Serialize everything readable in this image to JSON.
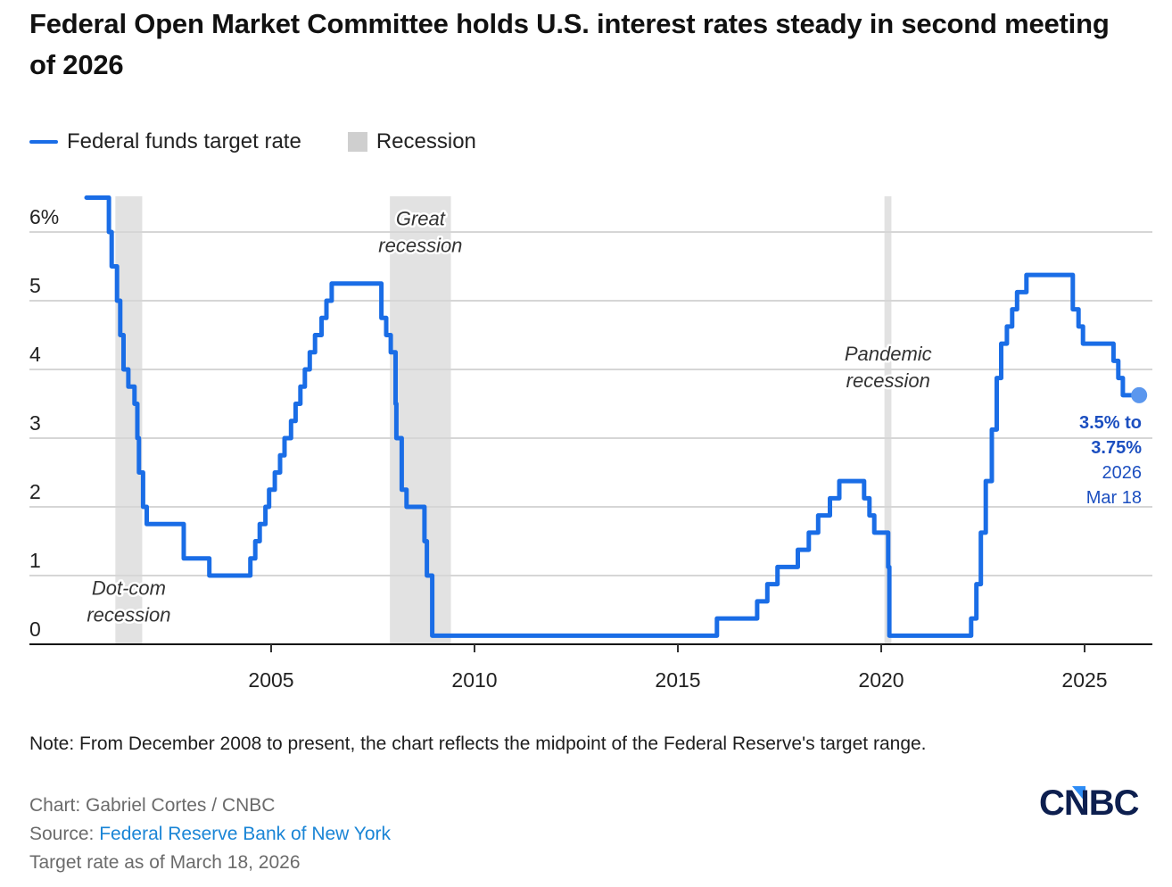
{
  "title": "Federal Open Market Committee holds U.S. interest rates steady in second meeting of 2026",
  "legend": {
    "series_label": "Federal funds target rate",
    "recession_label": "Recession"
  },
  "colors": {
    "line": "#1a6de6",
    "recession": "#e2e2e2",
    "gridline": "#d6d6d6",
    "axis": "#111111",
    "end_marker": "#5b97ee",
    "callout": "#1c4fc0",
    "source_link": "#1a85d6"
  },
  "footnote": "Note: From December 2008 to present, the chart reflects the midpoint of the Federal Reserve's target range.",
  "credits": {
    "chart_by": "Chart: Gabriel Cortes / CNBC",
    "source_prefix": "Source: ",
    "source_link": "Federal Reserve Bank of New York",
    "as_of": "Target rate as of March 18, 2026"
  },
  "logo": {
    "text": "CNBC",
    "icon": "cnbc-logo"
  },
  "chart_data": {
    "type": "line",
    "step": true,
    "title": "Federal Open Market Committee holds U.S. interest rates steady in second meeting of 2026",
    "xlabel": "",
    "ylabel": "",
    "xlim": [
      2000.0,
      2026.5
    ],
    "ylim": [
      0,
      6.5
    ],
    "grid": true,
    "legend_position": "top-left",
    "y_ticks": [
      0,
      1,
      2,
      3,
      4,
      5,
      6
    ],
    "y_tick_labels": [
      "0",
      "1",
      "2",
      "3",
      "4",
      "5",
      "6%"
    ],
    "x_ticks": [
      2005,
      2010,
      2015,
      2020,
      2025
    ],
    "x_tick_labels": [
      "2005",
      "2010",
      "2015",
      "2020",
      "2025"
    ],
    "recessions": [
      {
        "name": "Dot-com recession",
        "label_lines": [
          "Dot-com",
          "recession"
        ],
        "start": 2001.17,
        "end": 2001.83
      },
      {
        "name": "Great recession",
        "label_lines": [
          "Great",
          "recession"
        ],
        "start": 2007.92,
        "end": 2009.42
      },
      {
        "name": "Pandemic recession",
        "label_lines": [
          "Pandemic",
          "recession"
        ],
        "start": 2020.08,
        "end": 2020.25
      }
    ],
    "series": [
      {
        "name": "Federal funds target rate",
        "unit": "%",
        "points": [
          {
            "date": "2000-05-16",
            "x": 2000.46,
            "y": 6.5
          },
          {
            "date": "2001-01-03",
            "x": 2001.01,
            "y": 6.0
          },
          {
            "date": "2001-01-31",
            "x": 2001.08,
            "y": 5.5
          },
          {
            "date": "2001-03-20",
            "x": 2001.21,
            "y": 5.0
          },
          {
            "date": "2001-04-18",
            "x": 2001.29,
            "y": 4.5
          },
          {
            "date": "2001-05-15",
            "x": 2001.37,
            "y": 4.0
          },
          {
            "date": "2001-06-27",
            "x": 2001.49,
            "y": 3.75
          },
          {
            "date": "2001-08-21",
            "x": 2001.64,
            "y": 3.5
          },
          {
            "date": "2001-09-17",
            "x": 2001.71,
            "y": 3.0
          },
          {
            "date": "2001-10-02",
            "x": 2001.75,
            "y": 2.5
          },
          {
            "date": "2001-11-06",
            "x": 2001.85,
            "y": 2.0
          },
          {
            "date": "2001-12-11",
            "x": 2001.94,
            "y": 1.75
          },
          {
            "date": "2002-11-06",
            "x": 2002.85,
            "y": 1.25
          },
          {
            "date": "2003-06-25",
            "x": 2003.48,
            "y": 1.0
          },
          {
            "date": "2004-06-30",
            "x": 2004.49,
            "y": 1.25
          },
          {
            "date": "2004-08-10",
            "x": 2004.61,
            "y": 1.5
          },
          {
            "date": "2004-09-21",
            "x": 2004.72,
            "y": 1.75
          },
          {
            "date": "2004-11-10",
            "x": 2004.86,
            "y": 2.0
          },
          {
            "date": "2004-12-14",
            "x": 2004.95,
            "y": 2.25
          },
          {
            "date": "2005-02-02",
            "x": 2005.09,
            "y": 2.5
          },
          {
            "date": "2005-03-22",
            "x": 2005.22,
            "y": 2.75
          },
          {
            "date": "2005-05-03",
            "x": 2005.33,
            "y": 3.0
          },
          {
            "date": "2005-06-30",
            "x": 2005.49,
            "y": 3.25
          },
          {
            "date": "2005-08-09",
            "x": 2005.6,
            "y": 3.5
          },
          {
            "date": "2005-09-20",
            "x": 2005.72,
            "y": 3.75
          },
          {
            "date": "2005-11-01",
            "x": 2005.83,
            "y": 4.0
          },
          {
            "date": "2005-12-13",
            "x": 2005.95,
            "y": 4.25
          },
          {
            "date": "2006-01-31",
            "x": 2006.08,
            "y": 4.5
          },
          {
            "date": "2006-03-28",
            "x": 2006.24,
            "y": 4.75
          },
          {
            "date": "2006-05-10",
            "x": 2006.36,
            "y": 5.0
          },
          {
            "date": "2006-06-29",
            "x": 2006.49,
            "y": 5.25
          },
          {
            "date": "2007-09-18",
            "x": 2007.71,
            "y": 4.75
          },
          {
            "date": "2007-10-31",
            "x": 2007.83,
            "y": 4.5
          },
          {
            "date": "2007-12-11",
            "x": 2007.94,
            "y": 4.25
          },
          {
            "date": "2008-01-22",
            "x": 2008.06,
            "y": 3.5
          },
          {
            "date": "2008-01-30",
            "x": 2008.08,
            "y": 3.0
          },
          {
            "date": "2008-03-18",
            "x": 2008.21,
            "y": 2.25
          },
          {
            "date": "2008-04-30",
            "x": 2008.33,
            "y": 2.0
          },
          {
            "date": "2008-10-08",
            "x": 2008.77,
            "y": 1.5
          },
          {
            "date": "2008-10-29",
            "x": 2008.83,
            "y": 1.0
          },
          {
            "date": "2008-12-16",
            "x": 2008.96,
            "y": 0.125
          },
          {
            "date": "2015-12-16",
            "x": 2015.96,
            "y": 0.375
          },
          {
            "date": "2016-12-14",
            "x": 2016.95,
            "y": 0.625
          },
          {
            "date": "2017-03-15",
            "x": 2017.2,
            "y": 0.875
          },
          {
            "date": "2017-06-14",
            "x": 2017.45,
            "y": 1.125
          },
          {
            "date": "2017-12-13",
            "x": 2017.95,
            "y": 1.375
          },
          {
            "date": "2018-03-21",
            "x": 2018.22,
            "y": 1.625
          },
          {
            "date": "2018-06-13",
            "x": 2018.45,
            "y": 1.875
          },
          {
            "date": "2018-09-26",
            "x": 2018.74,
            "y": 2.125
          },
          {
            "date": "2018-12-19",
            "x": 2018.97,
            "y": 2.375
          },
          {
            "date": "2019-07-31",
            "x": 2019.58,
            "y": 2.125
          },
          {
            "date": "2019-09-18",
            "x": 2019.71,
            "y": 1.875
          },
          {
            "date": "2019-10-30",
            "x": 2019.83,
            "y": 1.625
          },
          {
            "date": "2020-03-03",
            "x": 2020.17,
            "y": 1.125
          },
          {
            "date": "2020-03-15",
            "x": 2020.2,
            "y": 0.125
          },
          {
            "date": "2022-03-16",
            "x": 2022.21,
            "y": 0.375
          },
          {
            "date": "2022-05-04",
            "x": 2022.34,
            "y": 0.875
          },
          {
            "date": "2022-06-15",
            "x": 2022.45,
            "y": 1.625
          },
          {
            "date": "2022-07-27",
            "x": 2022.57,
            "y": 2.375
          },
          {
            "date": "2022-09-21",
            "x": 2022.72,
            "y": 3.125
          },
          {
            "date": "2022-11-02",
            "x": 2022.84,
            "y": 3.875
          },
          {
            "date": "2022-12-14",
            "x": 2022.95,
            "y": 4.375
          },
          {
            "date": "2023-02-01",
            "x": 2023.09,
            "y": 4.625
          },
          {
            "date": "2023-03-22",
            "x": 2023.22,
            "y": 4.875
          },
          {
            "date": "2023-05-03",
            "x": 2023.34,
            "y": 5.125
          },
          {
            "date": "2023-07-26",
            "x": 2023.57,
            "y": 5.375
          },
          {
            "date": "2024-09-18",
            "x": 2024.71,
            "y": 4.875
          },
          {
            "date": "2024-11-07",
            "x": 2024.85,
            "y": 4.625
          },
          {
            "date": "2024-12-18",
            "x": 2024.96,
            "y": 4.375
          },
          {
            "date": "2025-09-17",
            "x": 2025.71,
            "y": 4.125
          },
          {
            "date": "2025-10-29",
            "x": 2025.83,
            "y": 3.875
          },
          {
            "date": "2025-12-10",
            "x": 2025.94,
            "y": 3.625
          },
          {
            "date": "2026-03-18",
            "x": 2026.21,
            "y": 3.625
          }
        ]
      }
    ],
    "annotations": [
      {
        "name": "end-value",
        "x": 2026.21,
        "y": 3.625,
        "lines_bold": [
          "3.5% to",
          "3.75%"
        ],
        "lines_regular": [
          "2026",
          "Mar 18"
        ]
      }
    ]
  }
}
